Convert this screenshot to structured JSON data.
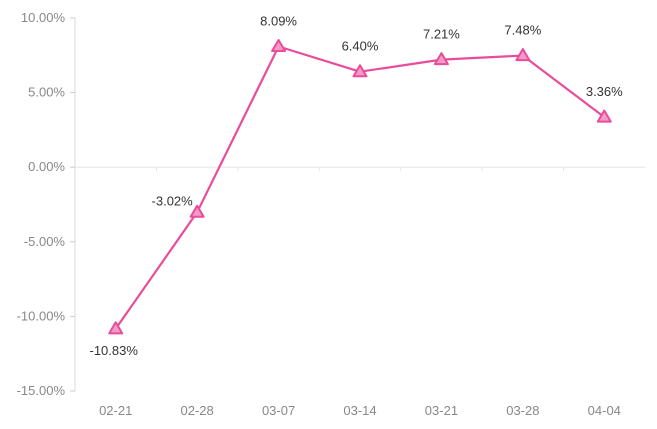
{
  "chart_data": {
    "type": "line",
    "title": "",
    "xlabel": "",
    "ylabel": "",
    "categories": [
      "02-21",
      "02-28",
      "03-07",
      "03-14",
      "03-21",
      "03-28",
      "04-04"
    ],
    "series": [
      {
        "values": [
          -10.83,
          -3.02,
          8.09,
          6.4,
          7.21,
          7.48,
          3.36
        ],
        "labels": [
          "-10.83%",
          "-3.02%",
          "8.09%",
          "6.40%",
          "7.21%",
          "7.48%",
          "3.36%"
        ],
        "color": "#e84c9a",
        "marker_fill": "#f39bc8",
        "marker": "triangle"
      }
    ],
    "ylim": [
      -15,
      10
    ],
    "yticks": [
      10,
      5,
      0,
      -5,
      -10,
      -15
    ],
    "ytick_labels": [
      "10.00%",
      "5.00%",
      "0.00%",
      "-5.00%",
      "-10.00%",
      "-15.00%"
    ],
    "grid": false,
    "legend": "none"
  }
}
